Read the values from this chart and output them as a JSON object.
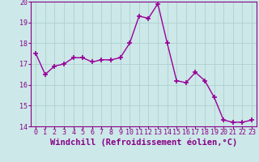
{
  "x": [
    0,
    1,
    2,
    3,
    4,
    5,
    6,
    7,
    8,
    9,
    10,
    11,
    12,
    13,
    14,
    15,
    16,
    17,
    18,
    19,
    20,
    21,
    22,
    23
  ],
  "y": [
    17.5,
    16.5,
    16.9,
    17.0,
    17.3,
    17.3,
    17.1,
    17.2,
    17.2,
    17.3,
    18.0,
    19.3,
    19.2,
    19.9,
    18.0,
    16.2,
    16.1,
    16.6,
    16.2,
    15.4,
    14.3,
    14.2,
    14.2,
    14.3
  ],
  "line_color": "#990099",
  "marker": "+",
  "marker_size": 4,
  "bg_color": "#cce8e8",
  "grid_color": "#b0d0d0",
  "xlabel": "Windchill (Refroidissement éolien,°C)",
  "xlabel_fontsize": 7.5,
  "ylim": [
    14,
    20
  ],
  "xlim": [
    -0.5,
    23.5
  ],
  "yticks": [
    14,
    15,
    16,
    17,
    18,
    19,
    20
  ],
  "xticks": [
    0,
    1,
    2,
    3,
    4,
    5,
    6,
    7,
    8,
    9,
    10,
    11,
    12,
    13,
    14,
    15,
    16,
    17,
    18,
    19,
    20,
    21,
    22,
    23
  ],
  "tick_fontsize": 6,
  "spine_color": "#880088",
  "line_width": 1.0,
  "marker_color": "#990099"
}
